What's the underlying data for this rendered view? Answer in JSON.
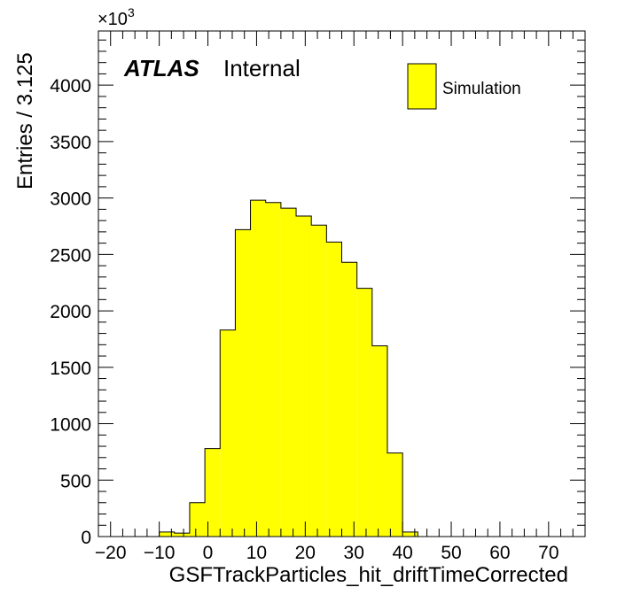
{
  "labels": {
    "atlas": "ATLAS",
    "internal": "Internal",
    "multiplier_base": "×10",
    "multiplier_exp": "3"
  },
  "colors": {
    "fill": "#ffff00",
    "line": "#000000",
    "background": "#ffffff"
  },
  "chart_data": {
    "type": "bar",
    "title": "",
    "xlabel": "GSFTrackParticles_hit_driftTimeCorrected",
    "ylabel": "Entries / 3.125",
    "xlim": [
      -22.5,
      77.5
    ],
    "ylim": [
      0,
      4480
    ],
    "bin_width": 3.125,
    "x_ticks": [
      -20,
      -10,
      0,
      10,
      20,
      30,
      40,
      50,
      60,
      70
    ],
    "x_tick_labels": [
      "−20",
      "−10",
      "0",
      "10",
      "20",
      "30",
      "40",
      "50",
      "60",
      "70"
    ],
    "y_ticks": [
      0,
      500,
      1000,
      1500,
      2000,
      2500,
      3000,
      3500,
      4000
    ],
    "y_tick_labels": [
      "0",
      "500",
      "1000",
      "1500",
      "2000",
      "2500",
      "3000",
      "3500",
      "4000"
    ],
    "y_multiplier": "1e3",
    "bin_edges": [
      -10.0,
      -6.875,
      -3.75,
      -0.625,
      2.5,
      5.625,
      8.75,
      11.875,
      15.0,
      18.125,
      21.25,
      24.375,
      27.5,
      30.625,
      33.75,
      36.875,
      40.0,
      43.125
    ],
    "values": [
      40,
      30,
      300,
      780,
      1830,
      2720,
      2980,
      2960,
      2910,
      2840,
      2760,
      2610,
      2430,
      2200,
      1690,
      740,
      40
    ],
    "series": [
      {
        "name": "Simulation",
        "values": [
          40,
          30,
          300,
          780,
          1830,
          2720,
          2980,
          2960,
          2910,
          2840,
          2760,
          2610,
          2430,
          2200,
          1690,
          740,
          40
        ]
      }
    ],
    "legend": {
      "position": "top-right",
      "entries": [
        "Simulation"
      ]
    },
    "grid": false
  }
}
